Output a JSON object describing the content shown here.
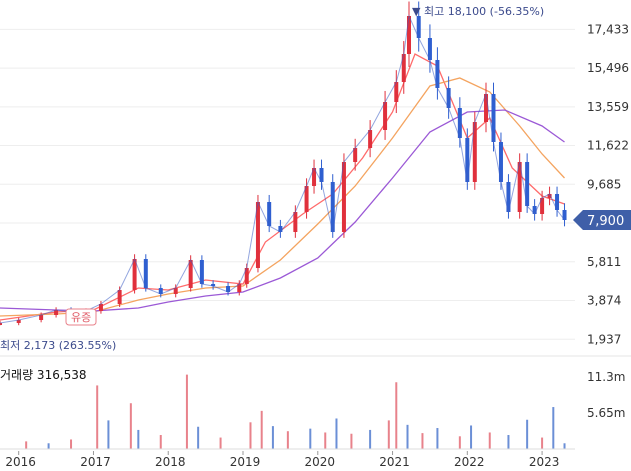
{
  "chart_data": {
    "type": "candlestick",
    "price_axis": {
      "ticks": [
        17433,
        15496,
        13559,
        11622,
        9685,
        7748,
        5811,
        3874,
        1937
      ],
      "tick_labels": [
        "17,433",
        "15,496",
        "13,559",
        "11,622",
        "9,685",
        "7,748",
        "5,811",
        "3,874",
        "1,937"
      ],
      "range": [
        1500,
        18400
      ],
      "grid": true
    },
    "x_axis": {
      "tick_labels": [
        "2016",
        "2017",
        "2018",
        "2019",
        "2020",
        "2021",
        "2022",
        "2023"
      ],
      "range_years": [
        2015.75,
        2023.4
      ]
    },
    "price_series": [
      {
        "x": 2015.75,
        "y": 2750
      },
      {
        "x": 2016.0,
        "y": 2900
      },
      {
        "x": 2016.3,
        "y": 3150
      },
      {
        "x": 2016.5,
        "y": 3400
      },
      {
        "x": 2016.7,
        "y": 3300
      },
      {
        "x": 2016.9,
        "y": 3350
      },
      {
        "x": 2017.1,
        "y": 3700
      },
      {
        "x": 2017.35,
        "y": 4400
      },
      {
        "x": 2017.55,
        "y": 5950
      },
      {
        "x": 2017.7,
        "y": 4500
      },
      {
        "x": 2017.9,
        "y": 4200
      },
      {
        "x": 2018.1,
        "y": 4500
      },
      {
        "x": 2018.3,
        "y": 5900
      },
      {
        "x": 2018.45,
        "y": 4700
      },
      {
        "x": 2018.6,
        "y": 4600
      },
      {
        "x": 2018.8,
        "y": 4300
      },
      {
        "x": 2018.95,
        "y": 4700
      },
      {
        "x": 2019.05,
        "y": 5500
      },
      {
        "x": 2019.2,
        "y": 8800
      },
      {
        "x": 2019.35,
        "y": 7600
      },
      {
        "x": 2019.5,
        "y": 7300
      },
      {
        "x": 2019.7,
        "y": 8300
      },
      {
        "x": 2019.85,
        "y": 9600
      },
      {
        "x": 2019.95,
        "y": 10500
      },
      {
        "x": 2020.05,
        "y": 9800
      },
      {
        "x": 2020.2,
        "y": 7300
      },
      {
        "x": 2020.35,
        "y": 10800
      },
      {
        "x": 2020.5,
        "y": 11500
      },
      {
        "x": 2020.7,
        "y": 12400
      },
      {
        "x": 2020.9,
        "y": 13800
      },
      {
        "x": 2021.05,
        "y": 14800
      },
      {
        "x": 2021.15,
        "y": 16200
      },
      {
        "x": 2021.22,
        "y": 18100
      },
      {
        "x": 2021.35,
        "y": 17000
      },
      {
        "x": 2021.5,
        "y": 15900
      },
      {
        "x": 2021.6,
        "y": 14500
      },
      {
        "x": 2021.75,
        "y": 13500
      },
      {
        "x": 2021.9,
        "y": 12000
      },
      {
        "x": 2022.0,
        "y": 9800
      },
      {
        "x": 2022.1,
        "y": 12800
      },
      {
        "x": 2022.25,
        "y": 14200
      },
      {
        "x": 2022.35,
        "y": 11800
      },
      {
        "x": 2022.45,
        "y": 9800
      },
      {
        "x": 2022.55,
        "y": 8300
      },
      {
        "x": 2022.7,
        "y": 10800
      },
      {
        "x": 2022.8,
        "y": 8600
      },
      {
        "x": 2022.9,
        "y": 8200
      },
      {
        "x": 2023.0,
        "y": 9000
      },
      {
        "x": 2023.1,
        "y": 9200
      },
      {
        "x": 2023.2,
        "y": 8400
      },
      {
        "x": 2023.3,
        "y": 7900
      }
    ],
    "moving_averages": [
      {
        "color": "#ff6b6b",
        "points": [
          {
            "x": 2015.75,
            "y": 2900
          },
          {
            "x": 2016.5,
            "y": 3300
          },
          {
            "x": 2017.0,
            "y": 3400
          },
          {
            "x": 2017.6,
            "y": 4500
          },
          {
            "x": 2018.0,
            "y": 4400
          },
          {
            "x": 2018.5,
            "y": 4900
          },
          {
            "x": 2019.0,
            "y": 4700
          },
          {
            "x": 2019.3,
            "y": 6800
          },
          {
            "x": 2019.8,
            "y": 8200
          },
          {
            "x": 2020.2,
            "y": 9200
          },
          {
            "x": 2020.6,
            "y": 11000
          },
          {
            "x": 2021.0,
            "y": 13300
          },
          {
            "x": 2021.3,
            "y": 16200
          },
          {
            "x": 2021.6,
            "y": 15600
          },
          {
            "x": 2022.0,
            "y": 12000
          },
          {
            "x": 2022.3,
            "y": 13000
          },
          {
            "x": 2022.6,
            "y": 10500
          },
          {
            "x": 2023.0,
            "y": 9100
          },
          {
            "x": 2023.3,
            "y": 8700
          }
        ]
      },
      {
        "color": "#f4a460",
        "points": [
          {
            "x": 2015.75,
            "y": 3100
          },
          {
            "x": 2016.5,
            "y": 3200
          },
          {
            "x": 2017.0,
            "y": 3300
          },
          {
            "x": 2017.6,
            "y": 3900
          },
          {
            "x": 2018.0,
            "y": 4200
          },
          {
            "x": 2018.5,
            "y": 4500
          },
          {
            "x": 2019.0,
            "y": 4600
          },
          {
            "x": 2019.5,
            "y": 5900
          },
          {
            "x": 2020.0,
            "y": 7700
          },
          {
            "x": 2020.5,
            "y": 9600
          },
          {
            "x": 2021.0,
            "y": 12000
          },
          {
            "x": 2021.5,
            "y": 14600
          },
          {
            "x": 2021.9,
            "y": 15000
          },
          {
            "x": 2022.3,
            "y": 14300
          },
          {
            "x": 2022.7,
            "y": 12600
          },
          {
            "x": 2023.0,
            "y": 11200
          },
          {
            "x": 2023.3,
            "y": 10000
          }
        ]
      },
      {
        "color": "#9b59d6",
        "points": [
          {
            "x": 2015.75,
            "y": 3500
          },
          {
            "x": 2016.5,
            "y": 3400
          },
          {
            "x": 2017.0,
            "y": 3350
          },
          {
            "x": 2017.6,
            "y": 3500
          },
          {
            "x": 2018.0,
            "y": 3800
          },
          {
            "x": 2018.5,
            "y": 4100
          },
          {
            "x": 2019.0,
            "y": 4300
          },
          {
            "x": 2019.5,
            "y": 5000
          },
          {
            "x": 2020.0,
            "y": 6000
          },
          {
            "x": 2020.5,
            "y": 7800
          },
          {
            "x": 2021.0,
            "y": 10000
          },
          {
            "x": 2021.5,
            "y": 12300
          },
          {
            "x": 2022.0,
            "y": 13300
          },
          {
            "x": 2022.5,
            "y": 13400
          },
          {
            "x": 2023.0,
            "y": 12600
          },
          {
            "x": 2023.3,
            "y": 11800
          }
        ]
      }
    ],
    "volume": {
      "label": "거래량 316,538",
      "ticks": [
        11300000,
        5650000
      ],
      "tick_labels": [
        "11.3m",
        "5.65m"
      ],
      "range": [
        0,
        14000000
      ],
      "up_color": "#e8828b",
      "down_color": "#6b8fd6",
      "bars": [
        {
          "x": 2016.1,
          "y": 1200000,
          "dir": "up"
        },
        {
          "x": 2016.4,
          "y": 900000,
          "dir": "down"
        },
        {
          "x": 2016.7,
          "y": 1500000,
          "dir": "up"
        },
        {
          "x": 2017.05,
          "y": 10000000,
          "dir": "up"
        },
        {
          "x": 2017.2,
          "y": 4500000,
          "dir": "down"
        },
        {
          "x": 2017.5,
          "y": 7200000,
          "dir": "up"
        },
        {
          "x": 2017.6,
          "y": 3000000,
          "dir": "down"
        },
        {
          "x": 2017.9,
          "y": 2200000,
          "dir": "up"
        },
        {
          "x": 2018.25,
          "y": 11700000,
          "dir": "up"
        },
        {
          "x": 2018.4,
          "y": 3500000,
          "dir": "down"
        },
        {
          "x": 2018.7,
          "y": 1800000,
          "dir": "up"
        },
        {
          "x": 2019.1,
          "y": 4200000,
          "dir": "up"
        },
        {
          "x": 2019.25,
          "y": 6000000,
          "dir": "up"
        },
        {
          "x": 2019.4,
          "y": 3600000,
          "dir": "down"
        },
        {
          "x": 2019.6,
          "y": 2800000,
          "dir": "up"
        },
        {
          "x": 2019.9,
          "y": 3200000,
          "dir": "down"
        },
        {
          "x": 2020.1,
          "y": 2600000,
          "dir": "up"
        },
        {
          "x": 2020.25,
          "y": 4800000,
          "dir": "down"
        },
        {
          "x": 2020.45,
          "y": 2400000,
          "dir": "up"
        },
        {
          "x": 2020.7,
          "y": 3000000,
          "dir": "down"
        },
        {
          "x": 2020.95,
          "y": 4500000,
          "dir": "up"
        },
        {
          "x": 2021.05,
          "y": 10500000,
          "dir": "up"
        },
        {
          "x": 2021.2,
          "y": 3800000,
          "dir": "down"
        },
        {
          "x": 2021.4,
          "y": 2500000,
          "dir": "up"
        },
        {
          "x": 2021.6,
          "y": 3300000,
          "dir": "down"
        },
        {
          "x": 2021.9,
          "y": 2000000,
          "dir": "up"
        },
        {
          "x": 2022.05,
          "y": 3700000,
          "dir": "down"
        },
        {
          "x": 2022.3,
          "y": 2600000,
          "dir": "up"
        },
        {
          "x": 2022.55,
          "y": 2200000,
          "dir": "down"
        },
        {
          "x": 2022.8,
          "y": 4600000,
          "dir": "down"
        },
        {
          "x": 2023.0,
          "y": 1800000,
          "dir": "up"
        },
        {
          "x": 2023.15,
          "y": 6600000,
          "dir": "down"
        },
        {
          "x": 2023.3,
          "y": 900000,
          "dir": "down"
        }
      ]
    },
    "annotations": {
      "high_label": "▼ 최고 18,100 (-56.35%)",
      "low_label": "최저 2,173 (263.55%)",
      "event_tag": "유증",
      "current_price": 7900,
      "current_label": "7,900",
      "current_color": "#3f5fa8"
    }
  }
}
